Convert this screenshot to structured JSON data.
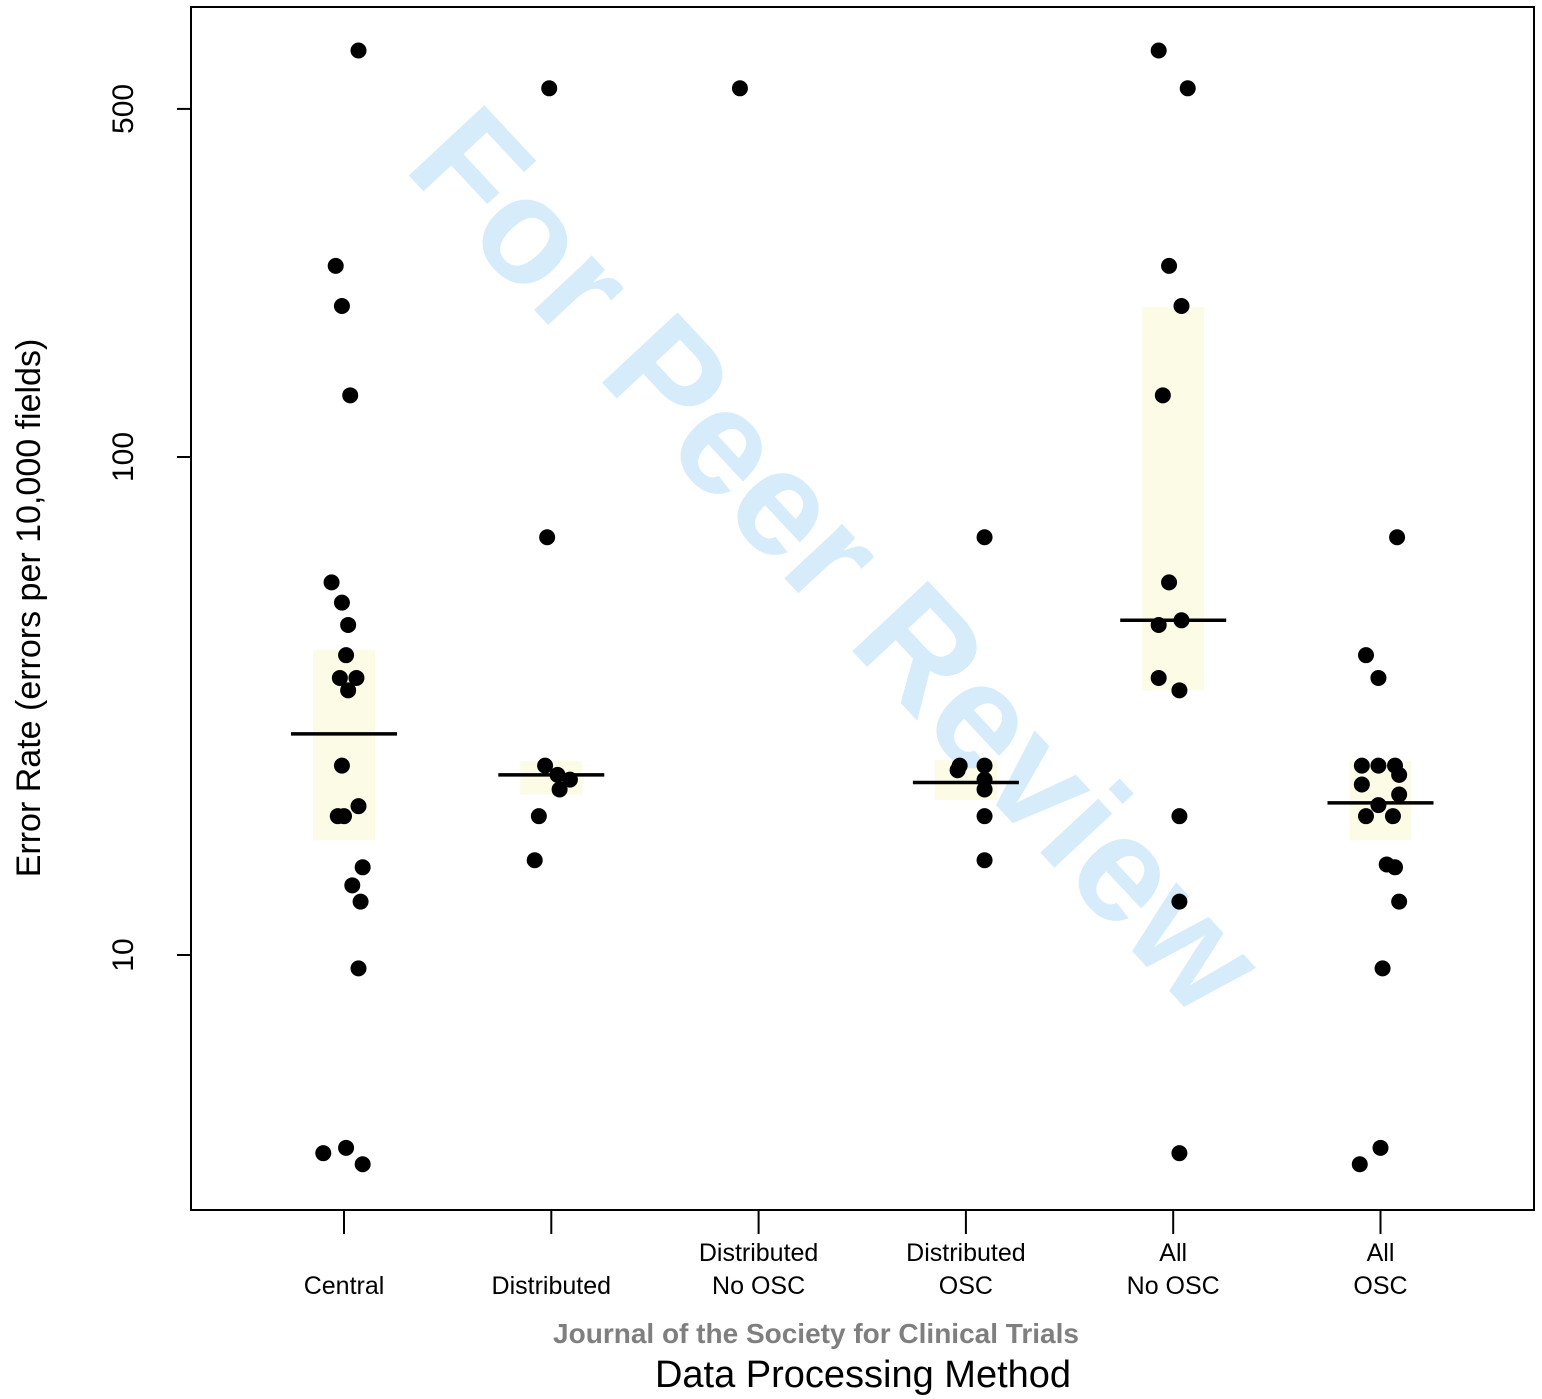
{
  "chart_data": {
    "type": "scatter",
    "subtype": "strip-plot",
    "title": "",
    "xlabel": "Data Processing Method",
    "ylabel": "Error Rate (errors per 10,000 fields)",
    "y_scale": "log",
    "ylim": [
      2.25,
      720
    ],
    "y_ticks": [
      "10",
      "100",
      "500"
    ],
    "grid": false,
    "legend": "none",
    "point_color": "#000000",
    "box_fill_color": "#fbfbe6",
    "median_color": "#000000",
    "categories": [
      {
        "label_lines": [
          "Central"
        ],
        "median": 27.8,
        "box": [
          17.0,
          41.0
        ],
        "points": [
          [
            -0.1,
            4.0
          ],
          [
            0.01,
            4.1
          ],
          [
            0.09,
            3.8
          ],
          [
            0.07,
            9.4
          ],
          [
            0.08,
            12.8
          ],
          [
            0.04,
            13.8
          ],
          [
            0.09,
            15.0
          ],
          [
            -0.03,
            19.0
          ],
          [
            0.0,
            19.0
          ],
          [
            0.07,
            19.9
          ],
          [
            -0.01,
            24.0
          ],
          [
            0.02,
            34.0
          ],
          [
            0.06,
            36.0
          ],
          [
            -0.02,
            36.0
          ],
          [
            0.01,
            40.0
          ],
          [
            0.02,
            46.0
          ],
          [
            -0.01,
            51.0
          ],
          [
            -0.06,
            56.0
          ],
          [
            -0.01,
            201.0
          ],
          [
            -0.04,
            242.0
          ],
          [
            0.03,
            133.0
          ],
          [
            0.07,
            655.0
          ]
        ]
      },
      {
        "label_lines": [
          "Distributed"
        ],
        "median": 23.0,
        "box": [
          21.0,
          24.5
        ],
        "points": [
          [
            -0.08,
            15.5
          ],
          [
            -0.06,
            19.0
          ],
          [
            0.04,
            21.5
          ],
          [
            0.09,
            22.5
          ],
          [
            0.03,
            23.0
          ],
          [
            -0.03,
            24.0
          ],
          [
            -0.02,
            69.0
          ],
          [
            -0.01,
            550.0
          ]
        ]
      },
      {
        "label_lines": [
          "Distributed",
          "No OSC"
        ],
        "median": null,
        "box": null,
        "points": [
          [
            -0.09,
            550.0
          ]
        ]
      },
      {
        "label_lines": [
          "Distributed",
          "OSC"
        ],
        "median": 22.2,
        "box": [
          20.5,
          24.6
        ],
        "points": [
          [
            -0.04,
            23.5
          ],
          [
            -0.03,
            24.0
          ],
          [
            0.09,
            24.0
          ],
          [
            0.09,
            21.5
          ],
          [
            0.09,
            22.5
          ],
          [
            0.09,
            19.0
          ],
          [
            0.09,
            15.5
          ],
          [
            0.09,
            69.0
          ]
        ]
      },
      {
        "label_lines": [
          "All",
          "No OSC"
        ],
        "median": 47.0,
        "box": [
          34.0,
          200.0
        ],
        "points": [
          [
            0.03,
            4.0
          ],
          [
            0.03,
            12.8
          ],
          [
            0.03,
            19.0
          ],
          [
            0.03,
            34.0
          ],
          [
            -0.07,
            36.0
          ],
          [
            -0.07,
            46.0
          ],
          [
            0.04,
            47.0
          ],
          [
            -0.02,
            56.0
          ],
          [
            -0.05,
            133.0
          ],
          [
            0.04,
            201.0
          ],
          [
            -0.02,
            242.0
          ],
          [
            -0.07,
            655.0
          ],
          [
            0.07,
            550.0
          ]
        ]
      },
      {
        "label_lines": [
          "All",
          "OSC"
        ],
        "median": 20.2,
        "box": [
          17.0,
          24.5
        ],
        "points": [
          [
            -0.1,
            3.8
          ],
          [
            0.0,
            4.1
          ],
          [
            0.01,
            9.4
          ],
          [
            0.09,
            12.8
          ],
          [
            0.03,
            15.2
          ],
          [
            0.07,
            15.0
          ],
          [
            -0.07,
            19.0
          ],
          [
            0.06,
            19.0
          ],
          [
            -0.01,
            20.0
          ],
          [
            0.09,
            21.0
          ],
          [
            -0.09,
            22.0
          ],
          [
            0.09,
            23.0
          ],
          [
            -0.09,
            24.0
          ],
          [
            -0.01,
            24.0
          ],
          [
            0.07,
            24.0
          ],
          [
            -0.01,
            36.0
          ],
          [
            -0.07,
            40.0
          ],
          [
            0.08,
            69.0
          ]
        ]
      }
    ]
  },
  "watermark": {
    "text": "For Peer Review",
    "color": "#d6ecfa"
  },
  "journal_line": {
    "text": "Journal of the Society for Clinical Trials",
    "color": "#7f7f7f"
  }
}
